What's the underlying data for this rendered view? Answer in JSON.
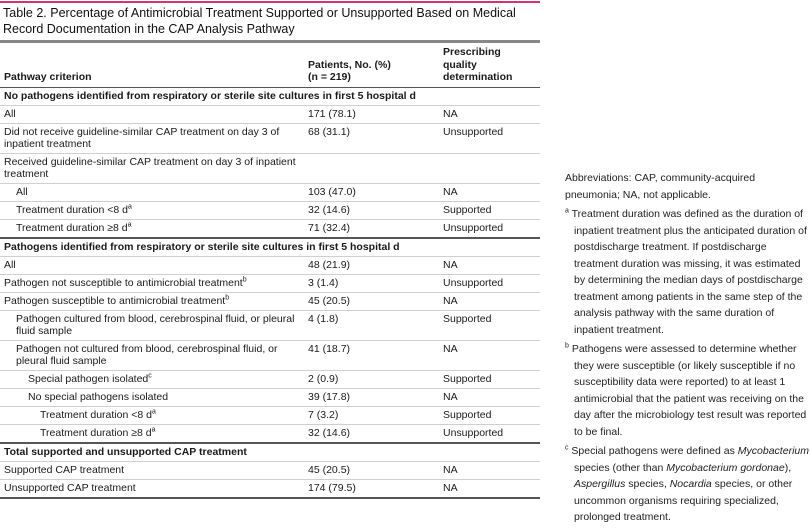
{
  "title": "Table 2. Percentage of Antimicrobial Treatment Supported or Unsupported Based on Medical Record Documentation in the CAP Analysis Pathway",
  "accent_color": "#d8336a",
  "headers": {
    "col1": "Pathway criterion",
    "col2_line1": "Patients, No. (%)",
    "col2_line2": "(n = 219)",
    "col3_line1": "Prescribing quality",
    "col3_line2": "determination"
  },
  "rows": [
    {
      "label": "No pathogens identified from respiratory or sterile site cultures in first 5 hospital d",
      "patients": "",
      "determination": "",
      "level": 0,
      "section": true
    },
    {
      "label": "All",
      "patients": "171 (78.1)",
      "determination": "NA",
      "level": 0
    },
    {
      "label": "Did not receive guideline-similar CAP treatment on day 3 of inpatient treatment",
      "patients": "68 (31.1)",
      "determination": "Unsupported",
      "level": 0
    },
    {
      "label": "Received guideline-similar CAP treatment on day 3 of inpatient treatment",
      "patients": "",
      "determination": "",
      "level": 0
    },
    {
      "label": "All",
      "patients": "103 (47.0)",
      "determination": "NA",
      "level": 1
    },
    {
      "label": "Treatment duration <8 d",
      "sup": "a",
      "patients": "32 (14.6)",
      "determination": "Supported",
      "level": 1
    },
    {
      "label": "Treatment duration ≥8 d",
      "sup": "a",
      "patients": "71 (32.4)",
      "determination": "Unsupported",
      "level": 1,
      "endgroup": true
    },
    {
      "label": "Pathogens identified from respiratory or sterile site cultures in first 5 hospital d",
      "patients": "",
      "determination": "",
      "level": 0,
      "section": true
    },
    {
      "label": "All",
      "patients": "48 (21.9)",
      "determination": "NA",
      "level": 0
    },
    {
      "label": "Pathogen not susceptible to antimicrobial treatment",
      "sup": "b",
      "patients": "3 (1.4)",
      "determination": "Unsupported",
      "level": 0
    },
    {
      "label": "Pathogen susceptible to antimicrobial treatment",
      "sup": "b",
      "patients": "45 (20.5)",
      "determination": "NA",
      "level": 0
    },
    {
      "label": "Pathogen cultured from blood, cerebrospinal fluid, or pleural fluid sample",
      "patients": "4 (1.8)",
      "determination": "Supported",
      "level": 1
    },
    {
      "label": "Pathogen not cultured from blood, cerebrospinal fluid, or pleural fluid sample",
      "patients": "41 (18.7)",
      "determination": "NA",
      "level": 1
    },
    {
      "label": "Special pathogen isolated",
      "sup": "c",
      "patients": "2 (0.9)",
      "determination": "Supported",
      "level": 2
    },
    {
      "label": "No special pathogens isolated",
      "patients": "39 (17.8)",
      "determination": "NA",
      "level": 2
    },
    {
      "label": "Treatment duration <8 d",
      "sup": "a",
      "patients": "7 (3.2)",
      "determination": "Supported",
      "level": 3
    },
    {
      "label": "Treatment duration ≥8 d",
      "sup": "a",
      "patients": "32 (14.6)",
      "determination": "Unsupported",
      "level": 3,
      "endgroup": true
    },
    {
      "label": "Total supported and unsupported CAP treatment",
      "patients": "",
      "determination": "",
      "level": 0,
      "section": true
    },
    {
      "label": "Supported CAP treatment",
      "patients": "45 (20.5)",
      "determination": "NA",
      "level": 0
    },
    {
      "label": "Unsupported CAP treatment",
      "patients": "174 (79.5)",
      "determination": "NA",
      "level": 0,
      "last": true
    }
  ],
  "notes": {
    "abbreviations": "Abbreviations: CAP, community-acquired pneumonia; NA, not applicable.",
    "a_mark": "a",
    "a": "Treatment duration was defined as the duration of inpatient treatment plus the anticipated duration of postdischarge treatment. If postdischarge treatment duration was missing, it was estimated by determining the median days of postdischarge treatment among patients in the same step of the analysis pathway with the same duration of inpatient treatment.",
    "b_mark": "b",
    "b": "Pathogens were assessed to determine whether they were susceptible (or likely susceptible if no susceptibility data were reported) to at least 1 antimicrobial that the patient was receiving on the day after the microbiology test result was reported to be final.",
    "c_mark": "c",
    "c_parts": [
      "Special pathogens were defined as ",
      "Mycobacterium",
      " species (other than ",
      "Mycobacterium gordonae",
      "), ",
      "Aspergillus",
      " species, ",
      "Nocardia",
      " species, or other uncommon organisms requiring specialized, prolonged treatment."
    ]
  }
}
